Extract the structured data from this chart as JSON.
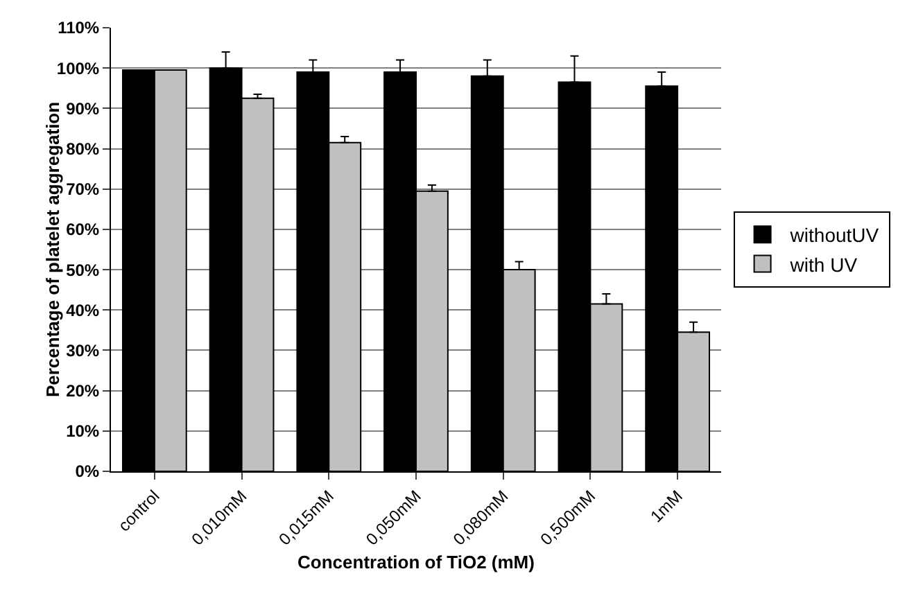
{
  "chart_data": {
    "type": "bar",
    "xlabel": "Concentration of TiO2 (mM)",
    "ylabel": "Percentage of platelet aggregation",
    "categories": [
      "control",
      "0,010mM",
      "0,015mM",
      "0,050mM",
      "0,080mM",
      "0,500mM",
      "1mM"
    ],
    "series": [
      {
        "name": "withoutUV",
        "color": "#000000",
        "values": [
          99.5,
          100,
          99,
          99,
          98,
          96.5,
          95.5
        ],
        "errors": [
          null,
          [
            100,
            104
          ],
          [
            99,
            102
          ],
          [
            99,
            102
          ],
          [
            98,
            102
          ],
          [
            96.5,
            103
          ],
          [
            95.5,
            99
          ]
        ]
      },
      {
        "name": "with UV",
        "color": "#c0c0c0",
        "values": [
          99.5,
          92.5,
          81.5,
          69.5,
          50,
          41.5,
          34.5
        ],
        "errors": [
          null,
          [
            92.5,
            93.5
          ],
          [
            81.5,
            83
          ],
          [
            69.5,
            71
          ],
          [
            50,
            52
          ],
          [
            41.5,
            44
          ],
          [
            34.5,
            37
          ]
        ]
      }
    ],
    "ylim": [
      0,
      110
    ],
    "yticks": [
      {
        "value": 0,
        "label": "0%"
      },
      {
        "value": 10,
        "label": "10%"
      },
      {
        "value": 20,
        "label": "20%"
      },
      {
        "value": 30,
        "label": "30%"
      },
      {
        "value": 40,
        "label": "40%"
      },
      {
        "value": 50,
        "label": "50%"
      },
      {
        "value": 60,
        "label": "60%"
      },
      {
        "value": 70,
        "label": "70%"
      },
      {
        "value": 80,
        "label": "80%"
      },
      {
        "value": 90,
        "label": "90%"
      },
      {
        "value": 100,
        "label": "100%"
      },
      {
        "value": 110,
        "label": "110%"
      }
    ],
    "grid": "y",
    "legend": "right"
  }
}
